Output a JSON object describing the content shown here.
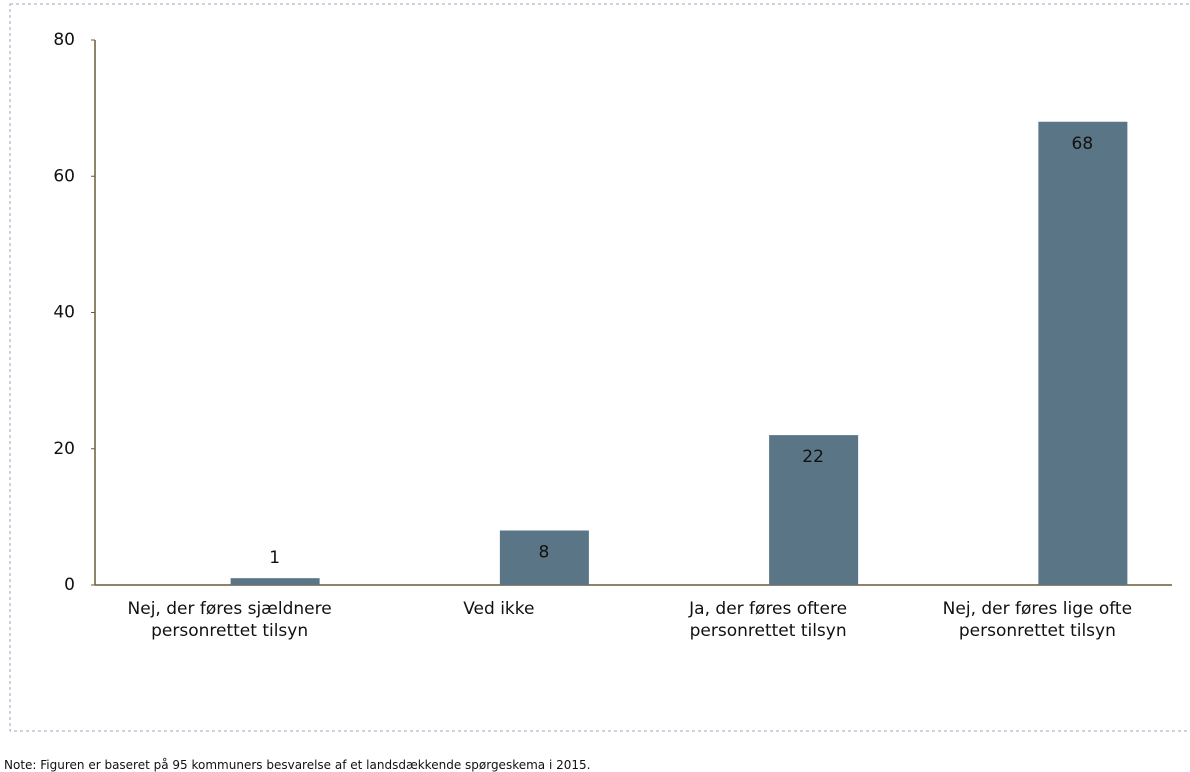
{
  "chart_data": {
    "type": "bar",
    "categories": [
      "Nej, der føres sjældnere personrettet tilsyn",
      "Ved ikke",
      "Ja, der føres oftere personrettet tilsyn",
      "Nej, der føres lige ofte personrettet tilsyn"
    ],
    "values": [
      1,
      8,
      22,
      68
    ],
    "color": "#5a7585",
    "ylim": [
      0,
      80
    ],
    "yticks": [
      0,
      20,
      40,
      60,
      80
    ],
    "grid": false
  },
  "note": "Note: Figuren er baseret på 95 kommuners besvarelse af et landsdækkende spørgeskema i 2015."
}
